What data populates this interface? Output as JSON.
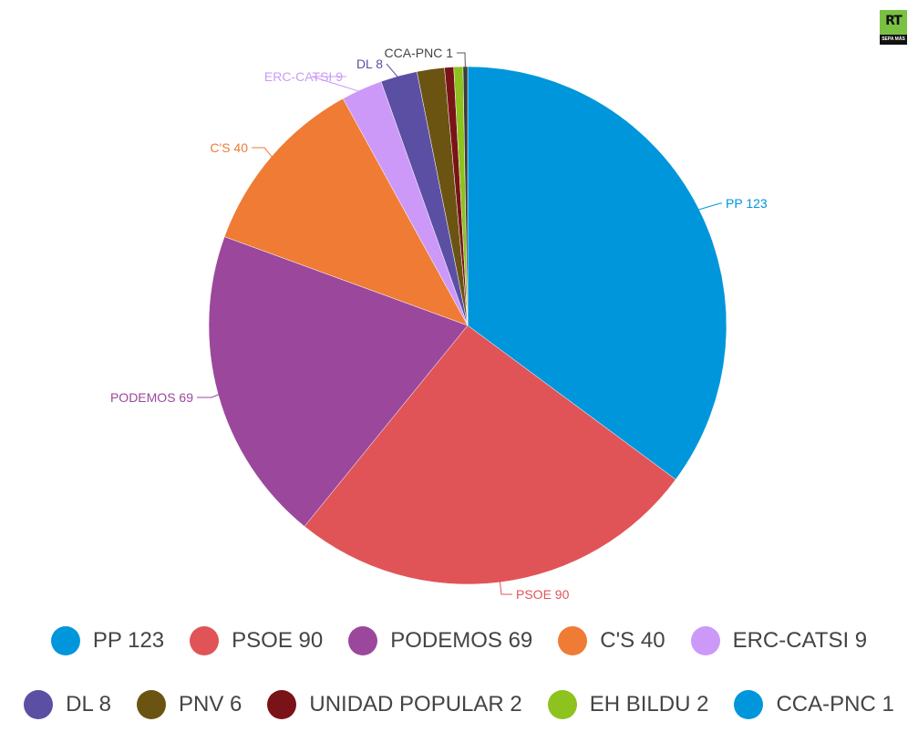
{
  "logo": {
    "text": "RT",
    "tagline": "SEPA MÁS",
    "color": "#7ac143"
  },
  "chart_data": {
    "type": "pie",
    "title": "",
    "start_angle_deg": 0,
    "direction": "clockwise",
    "slices": [
      {
        "name": "PP",
        "value": 123,
        "label": "PP 123",
        "color": "#0096dc",
        "pie_color": "#0096dc"
      },
      {
        "name": "PSOE",
        "value": 90,
        "label": "PSOE 90",
        "color": "#e05458",
        "pie_color": "#e05458"
      },
      {
        "name": "PODEMOS",
        "value": 69,
        "label": "PODEMOS 69",
        "color": "#9b489c",
        "pie_color": "#9b489c"
      },
      {
        "name": "C'S",
        "value": 40,
        "label": "C'S 40",
        "color": "#ef7b35",
        "pie_color": "#ef7b35"
      },
      {
        "name": "ERC-CATSI",
        "value": 9,
        "label": "ERC-CATSI 9",
        "color": "#cc99f8",
        "pie_color": "#cc99f8"
      },
      {
        "name": "DL",
        "value": 8,
        "label": "DL 8",
        "color": "#5b4fa4",
        "pie_color": "#5b4fa4"
      },
      {
        "name": "PNV",
        "value": 6,
        "label": "PNV 6",
        "color": "#6b5411",
        "pie_color": "#6b5411"
      },
      {
        "name": "UNIDAD POPULAR",
        "value": 2,
        "label": "UNIDAD POPULAR 2",
        "color": "#7a1318",
        "pie_color": "#7a1318"
      },
      {
        "name": "EH BILDU",
        "value": 2,
        "label": "EH BILDU 2",
        "color": "#8dc21f",
        "pie_color": "#8dc21f"
      },
      {
        "name": "CCA-PNC",
        "value": 1,
        "label": "CCA-PNC 1",
        "color": "#0096dc",
        "pie_color": "#3a3a3a"
      }
    ],
    "legend_position": "bottom"
  }
}
